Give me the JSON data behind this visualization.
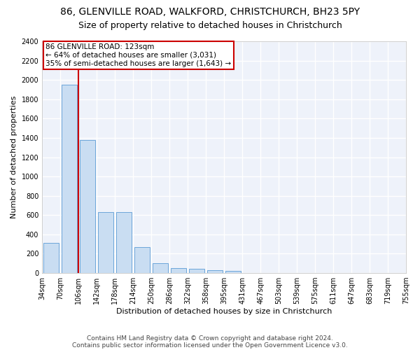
{
  "title": "86, GLENVILLE ROAD, WALKFORD, CHRISTCHURCH, BH23 5PY",
  "subtitle": "Size of property relative to detached houses in Christchurch",
  "xlabel": "Distribution of detached houses by size in Christchurch",
  "ylabel": "Number of detached properties",
  "bar_values": [
    315,
    1950,
    1380,
    630,
    630,
    270,
    100,
    50,
    45,
    30,
    25,
    0,
    0,
    0,
    0,
    0,
    0,
    0,
    0,
    0
  ],
  "bar_labels": [
    "34sqm",
    "70sqm",
    "106sqm",
    "142sqm",
    "178sqm",
    "214sqm",
    "250sqm",
    "286sqm",
    "322sqm",
    "358sqm",
    "395sqm",
    "431sqm",
    "467sqm",
    "503sqm",
    "539sqm",
    "575sqm",
    "611sqm",
    "647sqm",
    "683sqm",
    "719sqm",
    "755sqm"
  ],
  "bar_color": "#c9ddf2",
  "bar_edge_color": "#5b9bd5",
  "vline_color": "#cc0000",
  "annotation_text": "86 GLENVILLE ROAD: 123sqm\n← 64% of detached houses are smaller (3,031)\n35% of semi-detached houses are larger (1,643) →",
  "annotation_box_color": "#cc0000",
  "ylim": [
    0,
    2400
  ],
  "yticks": [
    0,
    200,
    400,
    600,
    800,
    1000,
    1200,
    1400,
    1600,
    1800,
    2000,
    2200,
    2400
  ],
  "footer1": "Contains HM Land Registry data © Crown copyright and database right 2024.",
  "footer2": "Contains public sector information licensed under the Open Government Licence v3.0.",
  "background_color": "#eef2fa",
  "grid_color": "#ffffff",
  "title_fontsize": 10,
  "subtitle_fontsize": 9,
  "tick_fontsize": 7,
  "ylabel_fontsize": 8,
  "xlabel_fontsize": 8,
  "footer_fontsize": 6.5
}
